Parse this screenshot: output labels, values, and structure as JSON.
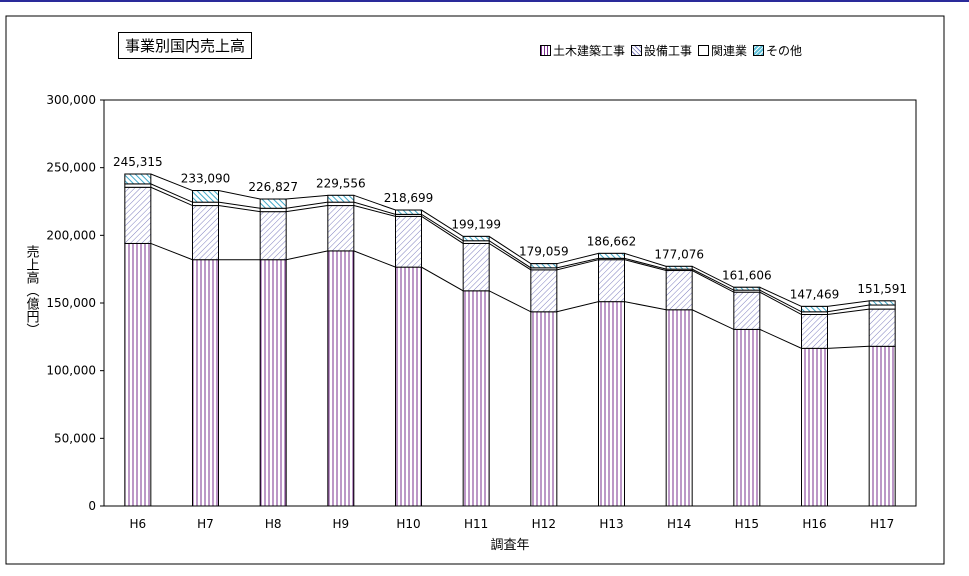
{
  "chart_data": {
    "type": "bar",
    "stacked": true,
    "title": "事業別国内売上高",
    "xlabel": "調査年",
    "ylabel": "売上高（億円）",
    "ylim": [
      0,
      300000
    ],
    "yticks": [
      "0",
      "50,000",
      "100,000",
      "150,000",
      "200,000",
      "250,000",
      "300,000"
    ],
    "categories": [
      "H6",
      "H7",
      "H8",
      "H9",
      "H10",
      "H11",
      "H12",
      "H13",
      "H14",
      "H15",
      "H16",
      "H17"
    ],
    "series": [
      {
        "name": "土木建築工事",
        "values": [
          194000,
          182000,
          182000,
          188500,
          176500,
          159000,
          143500,
          151000,
          145000,
          130500,
          116500,
          118000
        ],
        "color": "#7a2f8f"
      },
      {
        "name": "設備工事",
        "values": [
          41500,
          40000,
          35500,
          33500,
          37500,
          35000,
          31000,
          31000,
          29000,
          27500,
          25000,
          27500
        ],
        "color": "#8080c0"
      },
      {
        "name": "関連業",
        "values": [
          2500,
          2500,
          2500,
          2500,
          1500,
          2000,
          1500,
          1000,
          1000,
          1500,
          2000,
          3000
        ],
        "color": "#ffffff"
      },
      {
        "name": "その他",
        "values": [
          7315,
          8590,
          6827,
          5056,
          3199,
          3199,
          3059,
          3662,
          2076,
          2106,
          3969,
          3091
        ],
        "color": "#60c0d8"
      }
    ],
    "totals": [
      "245,315",
      "233,090",
      "226,827",
      "229,556",
      "218,699",
      "199,199",
      "179,059",
      "186,662",
      "177,076",
      "161,606",
      "147,469",
      "151,591"
    ],
    "grid": false,
    "legend_position": "top-right"
  }
}
